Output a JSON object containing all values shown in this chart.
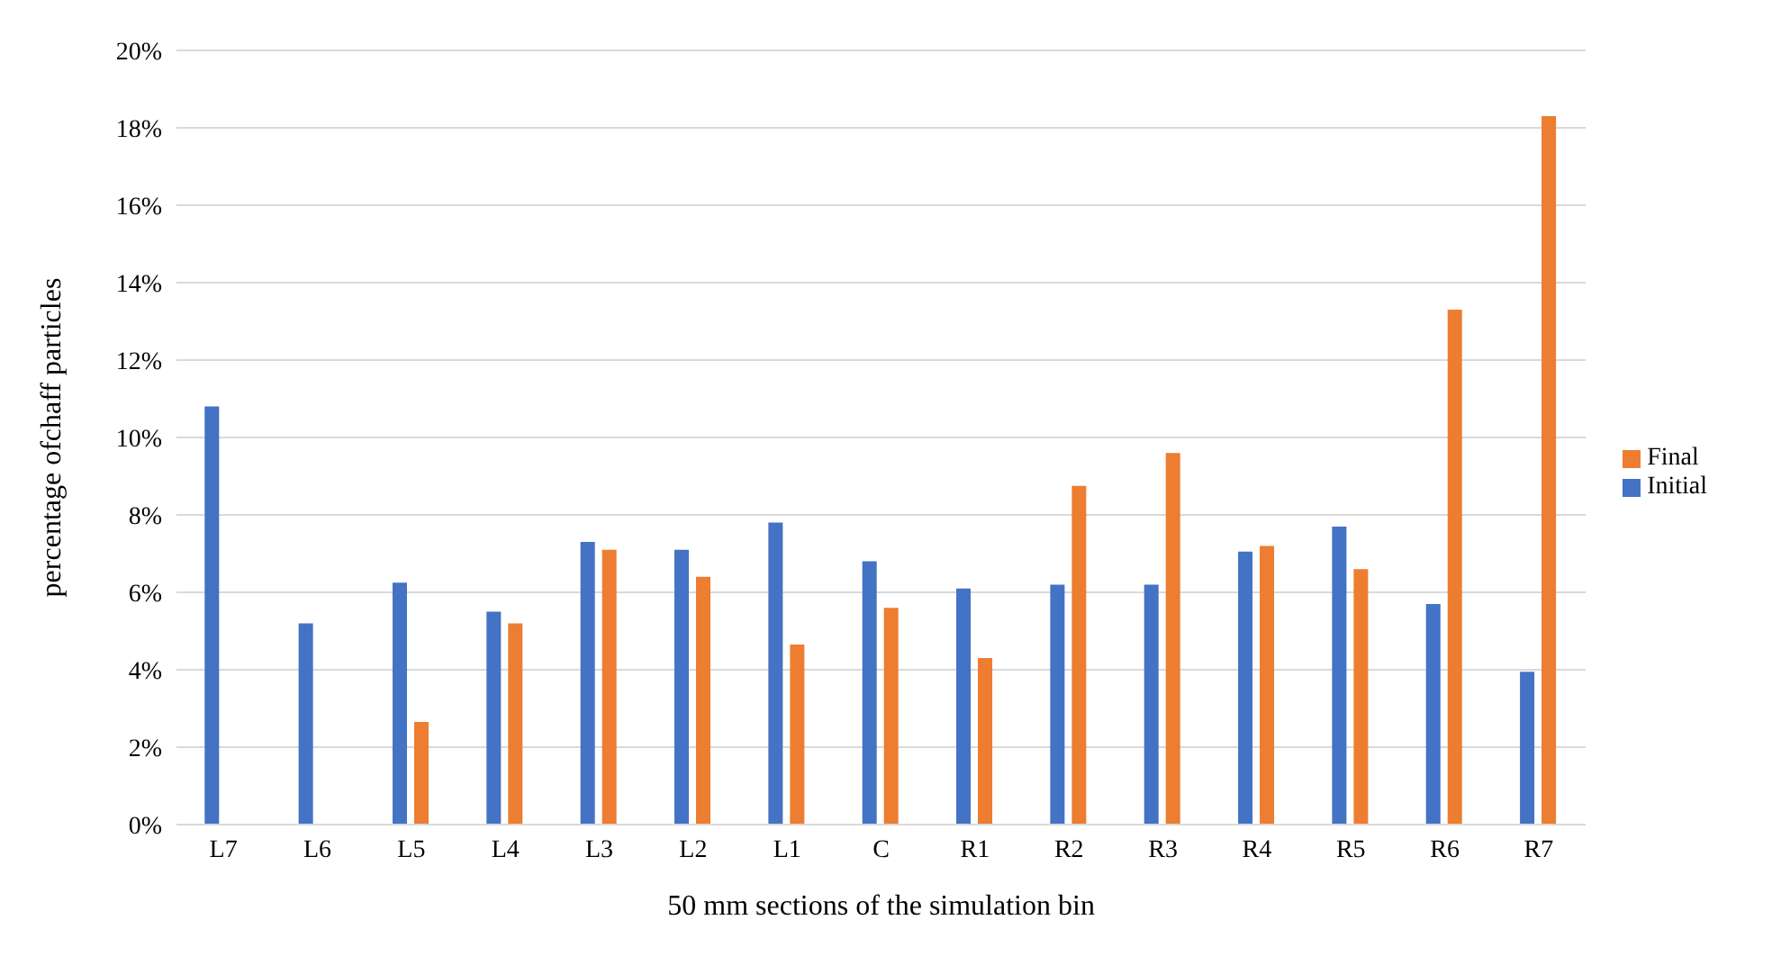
{
  "chart_data": {
    "type": "bar",
    "xlabel": "50 mm sections of the simulation bin",
    "ylabel": "percentage ofchaff particles",
    "categories": [
      "L7",
      "L6",
      "L5",
      "L4",
      "L3",
      "L2",
      "L1",
      "C",
      "R1",
      "R2",
      "R3",
      "R4",
      "R5",
      "R6",
      "R7"
    ],
    "series": [
      {
        "name": "Initial",
        "color": "#4472c4",
        "values": [
          10.8,
          5.2,
          6.25,
          5.5,
          7.3,
          7.1,
          7.8,
          6.8,
          6.1,
          6.2,
          6.2,
          7.05,
          7.7,
          5.7,
          3.95
        ]
      },
      {
        "name": "Final",
        "color": "#ed7d31",
        "values": [
          0,
          0,
          2.65,
          5.2,
          7.1,
          6.4,
          4.65,
          5.6,
          4.3,
          8.75,
          9.6,
          7.2,
          6.6,
          13.3,
          18.3
        ]
      }
    ],
    "ylim": [
      0,
      20
    ],
    "yticks": [
      {
        "value": 0,
        "label": "0%"
      },
      {
        "value": 2,
        "label": "2%"
      },
      {
        "value": 4,
        "label": "4%"
      },
      {
        "value": 6,
        "label": "6%"
      },
      {
        "value": 8,
        "label": "8%"
      },
      {
        "value": 10,
        "label": "10%"
      },
      {
        "value": 12,
        "label": "12%"
      },
      {
        "value": 14,
        "label": "14%"
      },
      {
        "value": 16,
        "label": "16%"
      },
      {
        "value": 18,
        "label": "18%"
      },
      {
        "value": 20,
        "label": "20%"
      }
    ],
    "grid": "y",
    "legend": "right"
  }
}
